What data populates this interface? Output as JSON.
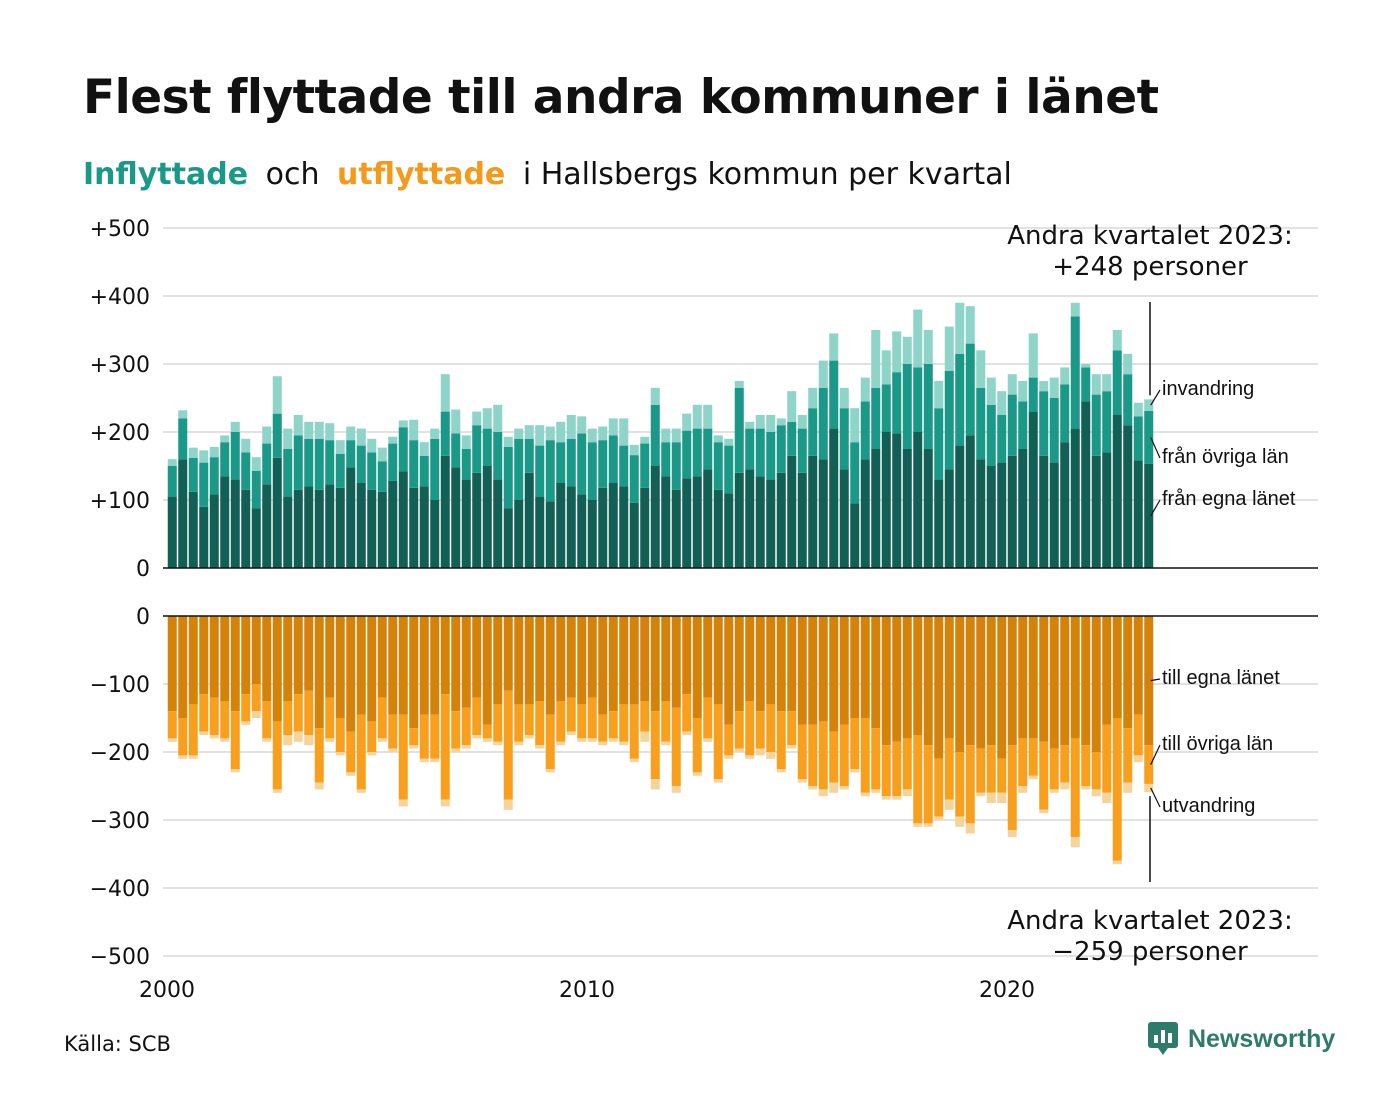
{
  "header": {
    "title": "Flest flyttade till andra kommuner i länet",
    "subtitle_in": "Inflyttade",
    "subtitle_and": "och",
    "subtitle_out": "utflyttade",
    "subtitle_rest": "i Hallsbergs kommun per kvartal"
  },
  "annotations": {
    "top_line1": "Andra kvartalet 2023:",
    "top_line2": "+248 personer",
    "bottom_line1": "Andra kvartalet 2023:",
    "bottom_line2": "−259 personer"
  },
  "footer": {
    "source": "Källa: SCB",
    "logo": "Newsworthy"
  },
  "colors": {
    "in_own": "#125f55",
    "in_other": "#1a9988",
    "in_immigration": "#8ed4c8",
    "out_own": "#d4820a",
    "out_other": "#f8a01d",
    "out_emigration": "#f5d49c"
  },
  "chart_data": {
    "type": "bar",
    "stacked": true,
    "x_unit": "quarter",
    "x_start": "2000 Q1",
    "x_end": "2023 Q2",
    "x_ticks": [
      "2000",
      "2010",
      "2020"
    ],
    "y_ticks": [
      "+500",
      "+400",
      "+300",
      "+200",
      "+100",
      "0",
      "0",
      "−100",
      "−200",
      "−300",
      "−400",
      "−500"
    ],
    "panels": [
      {
        "name": "Inflyttade",
        "ylim": [
          0,
          500
        ],
        "series": [
          {
            "name": "från egna länet",
            "values": [
              105,
              160,
              112,
              90,
              108,
              135,
              130,
              115,
              88,
              123,
              162,
              105,
              115,
              120,
              115,
              123,
              118,
              148,
              125,
              115,
              112,
              128,
              142,
              118,
              120,
              100,
              165,
              148,
              130,
              140,
              150,
              130,
              88,
              100,
              140,
              105,
              98,
              125,
              120,
              108,
              100,
              118,
              125,
              120,
              96,
              118,
              150,
              135,
              115,
              132,
              135,
              145,
              115,
              110,
              140,
              145,
              135,
              130,
              140,
              165,
              140,
              165,
              160,
              205,
              145,
              95,
              160,
              175,
              200,
              198,
              175,
              200,
              175,
              130,
              145,
              180,
              195,
              160,
              150,
              155,
              165,
              175,
              230,
              165,
              155,
              185,
              205,
              245,
              165,
              170,
              225,
              210,
              158,
              153
            ]
          },
          {
            "name": "från övriga län",
            "values": [
              45,
              60,
              50,
              65,
              55,
              50,
              70,
              55,
              55,
              60,
              65,
              70,
              80,
              70,
              75,
              65,
              50,
              40,
              55,
              55,
              45,
              55,
              65,
              70,
              45,
              90,
              65,
              50,
              45,
              70,
              55,
              70,
              90,
              90,
              50,
              75,
              90,
              60,
              70,
              90,
              85,
              70,
              70,
              60,
              70,
              65,
              90,
              50,
              70,
              70,
              70,
              60,
              70,
              70,
              125,
              60,
              70,
              70,
              70,
              50,
              65,
              70,
              105,
              100,
              90,
              90,
              85,
              90,
              70,
              90,
              125,
              95,
              125,
              105,
              145,
              135,
              135,
              105,
              90,
              70,
              90,
              70,
              50,
              95,
              95,
              85,
              165,
              50,
              90,
              90,
              95,
              75,
              65,
              78
            ]
          },
          {
            "name": "invandring",
            "values": [
              10,
              12,
              15,
              18,
              15,
              10,
              15,
              20,
              20,
              25,
              55,
              30,
              30,
              25,
              25,
              25,
              20,
              20,
              25,
              20,
              20,
              10,
              10,
              30,
              20,
              15,
              55,
              35,
              20,
              20,
              30,
              40,
              15,
              15,
              20,
              30,
              20,
              30,
              35,
              25,
              20,
              20,
              25,
              40,
              15,
              10,
              25,
              20,
              20,
              25,
              35,
              35,
              10,
              10,
              10,
              10,
              20,
              25,
              10,
              45,
              20,
              30,
              40,
              40,
              30,
              50,
              35,
              85,
              50,
              60,
              40,
              85,
              50,
              40,
              65,
              75,
              55,
              55,
              40,
              35,
              30,
              30,
              65,
              15,
              30,
              25,
              20,
              5,
              30,
              25,
              30,
              30,
              20,
              17
            ]
          }
        ]
      },
      {
        "name": "Utflyttade",
        "ylim": [
          -500,
          0
        ],
        "series": [
          {
            "name": "till egna länet",
            "values": [
              -140,
              -150,
              -130,
              -115,
              -120,
              -125,
              -140,
              -115,
              -100,
              -125,
              -155,
              -125,
              -115,
              -110,
              -165,
              -120,
              -150,
              -170,
              -145,
              -155,
              -120,
              -145,
              -145,
              -165,
              -145,
              -145,
              -115,
              -140,
              -135,
              -120,
              -160,
              -130,
              -110,
              -130,
              -130,
              -125,
              -145,
              -125,
              -120,
              -130,
              -120,
              -145,
              -140,
              -130,
              -130,
              -125,
              -140,
              -125,
              -135,
              -115,
              -150,
              -120,
              -130,
              -160,
              -140,
              -125,
              -140,
              -130,
              -140,
              -140,
              -160,
              -160,
              -155,
              -170,
              -160,
              -150,
              -150,
              -165,
              -190,
              -185,
              -180,
              -175,
              -190,
              -210,
              -180,
              -200,
              -190,
              -195,
              -190,
              -210,
              -190,
              -180,
              -180,
              -185,
              -195,
              -190,
              -180,
              -190,
              -200,
              -160,
              -150,
              -165,
              -145,
              -190
            ]
          },
          {
            "name": "till övriga län",
            "values": [
              -40,
              -55,
              -75,
              -55,
              -55,
              -55,
              -85,
              -40,
              -40,
              -55,
              -100,
              -50,
              -55,
              -65,
              -80,
              -60,
              -50,
              -60,
              -110,
              -45,
              -60,
              -50,
              -125,
              -25,
              -65,
              -65,
              -155,
              -55,
              -55,
              -55,
              -20,
              -55,
              -160,
              -55,
              -45,
              -65,
              -80,
              -60,
              -50,
              -50,
              -60,
              -40,
              -40,
              -55,
              -80,
              -45,
              -100,
              -60,
              -115,
              -55,
              -80,
              -60,
              -110,
              -45,
              -55,
              -80,
              -55,
              -70,
              -85,
              -50,
              -80,
              -90,
              -100,
              -75,
              -90,
              -75,
              -110,
              -90,
              -75,
              -80,
              -75,
              -130,
              -115,
              -85,
              -90,
              -95,
              -115,
              -65,
              -70,
              -50,
              -125,
              -70,
              -55,
              -100,
              -60,
              -55,
              -145,
              -60,
              -55,
              -100,
              -210,
              -80,
              -60,
              -57
            ]
          },
          {
            "name": "utvandring",
            "values": [
              -5,
              -5,
              -5,
              -5,
              -5,
              -5,
              -5,
              -5,
              -10,
              -5,
              -5,
              -15,
              -15,
              -15,
              -10,
              -5,
              -5,
              -5,
              -5,
              -5,
              -5,
              -5,
              -10,
              -5,
              -5,
              -5,
              -10,
              -5,
              -5,
              -5,
              -5,
              -5,
              -15,
              -5,
              -5,
              -5,
              -5,
              -5,
              -5,
              -5,
              -5,
              -5,
              -5,
              -5,
              -5,
              -15,
              -15,
              -5,
              -10,
              -5,
              -5,
              -5,
              -5,
              -5,
              -5,
              -5,
              -10,
              -10,
              -5,
              -5,
              -5,
              -5,
              -10,
              -15,
              -5,
              -5,
              -5,
              -5,
              -5,
              -5,
              -10,
              -5,
              -5,
              -5,
              -15,
              -15,
              -15,
              -5,
              -15,
              -15,
              -10,
              -10,
              -5,
              -5,
              -5,
              -10,
              -15,
              -5,
              -10,
              -15,
              -5,
              -15,
              -10,
              -12
            ]
          }
        ]
      }
    ],
    "labels_in": [
      "invandring",
      "från övriga län",
      "från egna länet"
    ],
    "labels_out": [
      "till egna länet",
      "till övriga län",
      "utvandring"
    ],
    "grid": true
  }
}
